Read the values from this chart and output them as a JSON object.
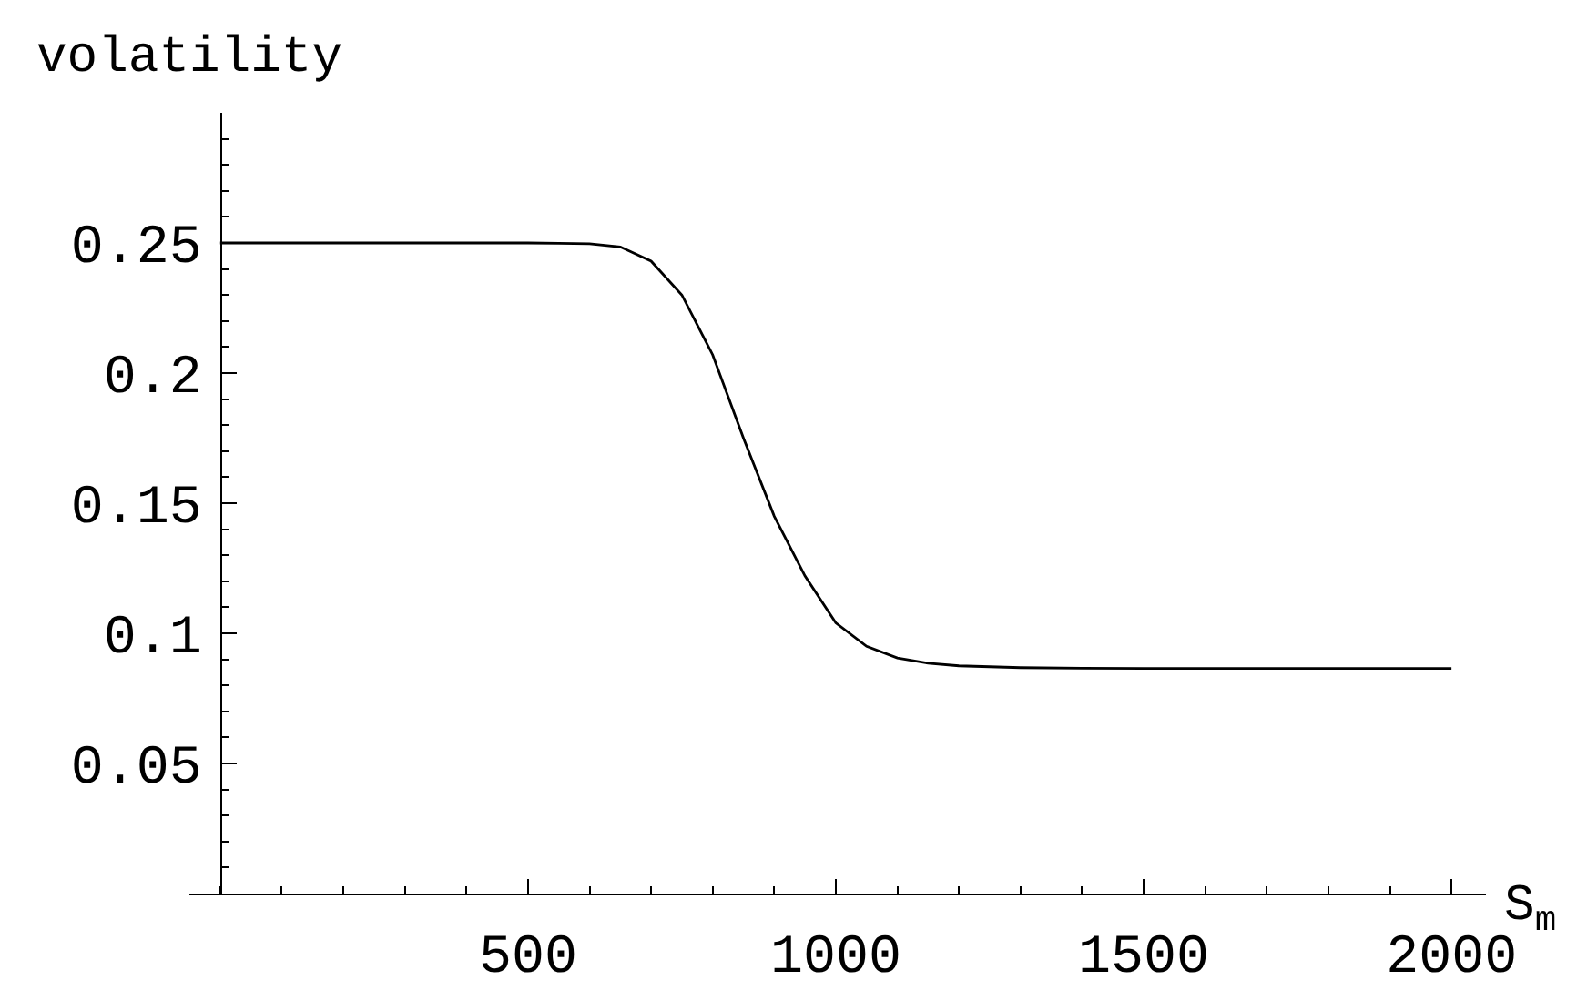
{
  "chart_data": {
    "type": "line",
    "ylabel": "volatility",
    "xlabel": "S$_{m}$",
    "x": [
      0,
      100,
      200,
      300,
      400,
      500,
      550,
      600,
      650,
      700,
      750,
      800,
      850,
      900,
      950,
      1000,
      1050,
      1100,
      1150,
      1200,
      1300,
      1400,
      1500,
      1600,
      1800,
      2000
    ],
    "series": [
      {
        "color": "#000000",
        "values": [
          0.25,
          0.25,
          0.25,
          0.25,
          0.25,
          0.25,
          0.2499,
          0.2497,
          0.2485,
          0.243,
          0.23,
          0.207,
          0.175,
          0.145,
          0.122,
          0.104,
          0.095,
          0.0905,
          0.0885,
          0.0875,
          0.0868,
          0.0866,
          0.0865,
          0.0865,
          0.0865,
          0.0865
        ]
      }
    ],
    "xlim": [
      -50,
      2056
    ],
    "ylim": [
      0,
      0.3
    ],
    "xticks": [
      500,
      1000,
      1500,
      2000
    ],
    "yticks": [
      0.05,
      0.1,
      0.15,
      0.2,
      0.25
    ],
    "grid": false,
    "marker": "none",
    "line_style": "solid"
  }
}
